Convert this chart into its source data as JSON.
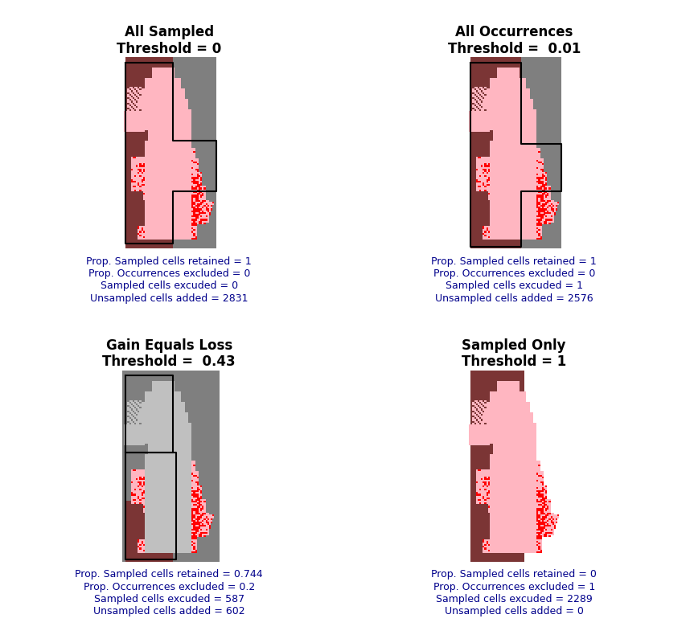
{
  "panels": [
    {
      "title": "All Sampled",
      "subtitle": "Threshold = 0",
      "stats": [
        "Prop. Sampled cells retained = 1",
        "Prop. Occurrences excluded = 0",
        "Sampled cells excuded = 0",
        "Unsampled cells added = 2831"
      ],
      "config": "all_sampled"
    },
    {
      "title": "All Occurrences",
      "subtitle": "Threshold =  0.01",
      "stats": [
        "Prop. Sampled cells retained = 1",
        "Prop. Occurrences excluded = 0",
        "Sampled cells excuded = 1",
        "Unsampled cells added = 2576"
      ],
      "config": "all_occurrences"
    },
    {
      "title": "Gain Equals Loss",
      "subtitle": "Threshold =  0.43",
      "stats": [
        "Prop. Sampled cells retained = 0.744",
        "Prop. Occurrences excluded = 0.2",
        "Sampled cells excuded = 587",
        "Unsampled cells added = 602"
      ],
      "config": "gain_equals_loss"
    },
    {
      "title": "Sampled Only",
      "subtitle": "Threshold = 1",
      "stats": [
        "Prop. Sampled cells retained = 0",
        "Prop. Occurrences excluded = 1",
        "Sampled cells excuded = 2289",
        "Unsampled cells added = 0"
      ],
      "config": "sampled_only"
    }
  ],
  "title_fontsize": 12,
  "stats_fontsize": 9,
  "title_color": "#000000",
  "stats_color": "#00008B",
  "pink_color": "#FFB6C1",
  "red_color": "#FF0000",
  "dark_red_color": "#7B3535",
  "gray_color": "#7F7F7F",
  "light_gray_color": "#C0C0C0",
  "white_color": "#FFFFFF"
}
